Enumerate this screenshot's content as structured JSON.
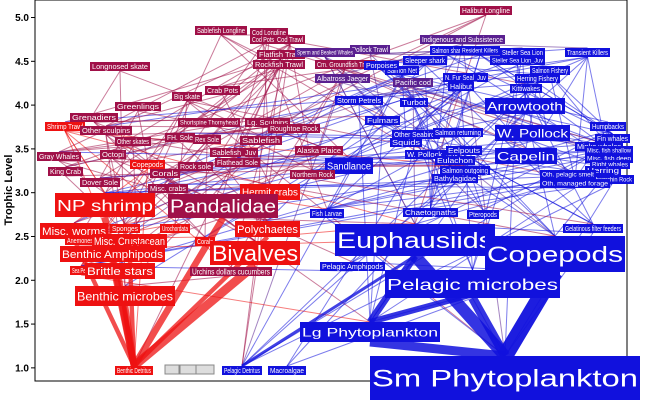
{
  "chart_data": {
    "type": "food-web",
    "ylabel": "Trophic Level",
    "yticks": [
      "1.0",
      "1.5",
      "2.0",
      "2.5",
      "3.0",
      "3.5",
      "4.0",
      "4.5",
      "5.0"
    ],
    "ylim": [
      0.85,
      5.2
    ],
    "colors": {
      "benthic": "#ee1111",
      "pelagic": "#1111dd",
      "mixed": "#a01048",
      "pelagic_mixed": "#5a2090",
      "detritus": "#dddddd",
      "detritus_text": "#444444",
      "axis": "#000000"
    },
    "nodes": [
      {
        "label": "Halibut Longline",
        "tl": 5.22,
        "group": "mixed",
        "size": 1
      },
      {
        "label": "Sablefish Longline",
        "tl": 5.08,
        "group": "mixed",
        "size": 1
      },
      {
        "label": "Cod Longline",
        "tl": 5.06,
        "group": "mixed",
        "size": 1
      },
      {
        "label": "Cod Pots",
        "tl": 5.0,
        "group": "mixed",
        "size": 1
      },
      {
        "label": "Cod Trawl",
        "tl": 5.0,
        "group": "mixed",
        "size": 1
      },
      {
        "label": "Indigenous and Subsistence",
        "tl": 5.0,
        "group": "pelagic_mixed",
        "size": 1
      },
      {
        "label": "Pollock Trawl",
        "tl": 4.93,
        "group": "pelagic_mixed",
        "size": 1
      },
      {
        "label": "Flatfish Trawl",
        "tl": 4.88,
        "group": "mixed",
        "size": 1
      },
      {
        "label": "Sperm and Beaked Whales",
        "tl": 4.86,
        "group": "pelagic_mixed",
        "size": 1
      },
      {
        "label": "Salmon shark",
        "tl": 4.93,
        "group": "pelagic",
        "size": 1
      },
      {
        "label": "Resident Killers",
        "tl": 4.86,
        "group": "pelagic",
        "size": 1
      },
      {
        "label": "Steller Sea Lion",
        "tl": 4.88,
        "group": "pelagic",
        "size": 1
      },
      {
        "label": "Transient Killers",
        "tl": 4.85,
        "group": "pelagic",
        "size": 1
      },
      {
        "label": "Longnosed skate",
        "tl": 4.7,
        "group": "mixed",
        "size": 1
      },
      {
        "label": "Rockfish Trawl",
        "tl": 4.73,
        "group": "mixed",
        "size": 1
      },
      {
        "label": "Cm. Groundfish Trawl",
        "tl": 4.73,
        "group": "mixed",
        "size": 1
      },
      {
        "label": "Sleeper shark",
        "tl": 4.75,
        "group": "pelagic",
        "size": 1
      },
      {
        "label": "Salmon Net",
        "tl": 4.73,
        "group": "pelagic",
        "size": 1
      },
      {
        "label": "Steller Sea Lion_Juv",
        "tl": 4.73,
        "group": "pelagic",
        "size": 1
      },
      {
        "label": "Salmon Fishery",
        "tl": 4.73,
        "group": "pelagic",
        "size": 1
      },
      {
        "label": "Porpoises",
        "tl": 4.72,
        "group": "pelagic",
        "size": 1
      },
      {
        "label": "Albatross Jaeger",
        "tl": 4.55,
        "group": "pelagic_mixed",
        "size": 1
      },
      {
        "label": "Pacific cod",
        "tl": 4.58,
        "group": "pelagic_mixed",
        "size": 1
      },
      {
        "label": "N. Fur Seal_Juv",
        "tl": 4.58,
        "group": "pelagic",
        "size": 1
      },
      {
        "label": "Herring Fishery",
        "tl": 4.53,
        "group": "pelagic",
        "size": 1
      },
      {
        "label": "Halibut",
        "tl": 4.5,
        "group": "pelagic",
        "size": 1
      },
      {
        "label": "Kittiwakes",
        "tl": 4.43,
        "group": "pelagic",
        "size": 1
      },
      {
        "label": "Crab Pots",
        "tl": 4.33,
        "group": "mixed",
        "size": 1
      },
      {
        "label": "Big skate",
        "tl": 4.3,
        "group": "mixed",
        "size": 1
      },
      {
        "label": "Storm Petrels",
        "tl": 4.25,
        "group": "pelagic",
        "size": 1
      },
      {
        "label": "Turbot",
        "tl": 4.3,
        "group": "pelagic",
        "size": 1
      },
      {
        "label": "Greenlings",
        "tl": 4.18,
        "group": "mixed",
        "size": 1
      },
      {
        "label": "Arrowtooth",
        "tl": 4.2,
        "group": "pelagic",
        "size": 2
      },
      {
        "label": "Grenadiers",
        "tl": 4.05,
        "group": "mixed",
        "size": 1
      },
      {
        "label": "Shrimp Trawl",
        "tl": 3.98,
        "group": "benthic",
        "size": 1
      },
      {
        "label": "Other sculpins",
        "tl": 3.93,
        "group": "mixed",
        "size": 1
      },
      {
        "label": "Shortspine Thornyhead",
        "tl": 4.03,
        "group": "mixed",
        "size": 1
      },
      {
        "label": "Lg. Sculpins",
        "tl": 3.98,
        "group": "mixed",
        "size": 1
      },
      {
        "label": "Roughtoe Rock",
        "tl": 3.95,
        "group": "mixed",
        "size": 1
      },
      {
        "label": "Fulmars",
        "tl": 3.93,
        "group": "pelagic",
        "size": 1
      },
      {
        "label": "Humpbacks",
        "tl": 3.98,
        "group": "pelagic",
        "size": 1
      },
      {
        "label": "Sei whales",
        "tl": 3.95,
        "group": "pelagic",
        "size": 1
      },
      {
        "label": "Other Seabirds",
        "tl": 3.85,
        "group": "pelagic",
        "size": 1
      },
      {
        "label": "Salmon returning",
        "tl": 3.83,
        "group": "pelagic",
        "size": 1
      },
      {
        "label": "W. Pollock",
        "tl": 3.85,
        "group": "pelagic",
        "size": 2
      },
      {
        "label": "Fin whales",
        "tl": 3.83,
        "group": "pelagic",
        "size": 1
      },
      {
        "label": "Other skates",
        "tl": 3.78,
        "group": "mixed",
        "size": 1
      },
      {
        "label": "FH. Sole",
        "tl": 3.8,
        "group": "mixed",
        "size": 1
      },
      {
        "label": "Rex Sole",
        "tl": 3.8,
        "group": "mixed",
        "size": 1
      },
      {
        "label": "Sablefish",
        "tl": 3.78,
        "group": "mixed",
        "size": 1
      },
      {
        "label": "Squids",
        "tl": 3.7,
        "group": "pelagic",
        "size": 1
      },
      {
        "label": "W. Pollock_Juv",
        "tl": 3.65,
        "group": "pelagic",
        "size": 1
      },
      {
        "label": "Eelpouts",
        "tl": 3.68,
        "group": "pelagic",
        "size": 1
      },
      {
        "label": "Minke whales",
        "tl": 3.7,
        "group": "pelagic",
        "size": 1
      },
      {
        "label": "Gray Whales",
        "tl": 3.6,
        "group": "mixed",
        "size": 1
      },
      {
        "label": "Octopi",
        "tl": 3.63,
        "group": "mixed",
        "size": 1
      },
      {
        "label": "Sablefish_Juv",
        "tl": 3.65,
        "group": "mixed",
        "size": 1
      },
      {
        "label": "Alaska Plaice",
        "tl": 3.6,
        "group": "mixed",
        "size": 1
      },
      {
        "label": "Capelin",
        "tl": 3.6,
        "group": "pelagic",
        "size": 2
      },
      {
        "label": "Misc. fish shallow",
        "tl": 3.7,
        "group": "pelagic",
        "size": 1
      },
      {
        "label": "Misc. fish deep",
        "tl": 3.63,
        "group": "pelagic",
        "size": 1
      },
      {
        "label": "Right whales",
        "tl": 3.58,
        "group": "pelagic",
        "size": 1
      },
      {
        "label": "Eulachon",
        "tl": 3.55,
        "group": "pelagic",
        "size": 1
      },
      {
        "label": "Herring",
        "tl": 3.48,
        "group": "pelagic",
        "size": 1
      },
      {
        "label": "Sharpchin Rock",
        "tl": 3.45,
        "group": "pelagic",
        "size": 1
      },
      {
        "label": "King Crab",
        "tl": 3.43,
        "group": "mixed",
        "size": 1
      },
      {
        "label": "Copepods",
        "tl": 3.5,
        "group": "benthic",
        "size": 1
      },
      {
        "label": "Rock sole",
        "tl": 3.45,
        "group": "mixed",
        "size": 1
      },
      {
        "label": "Flathead Sole",
        "tl": 3.5,
        "group": "mixed",
        "size": 1
      },
      {
        "label": "Sandlance",
        "tl": 3.55,
        "group": "pelagic",
        "size": 1
      },
      {
        "label": "Salmon outgoing",
        "tl": 3.48,
        "group": "pelagic",
        "size": 1
      },
      {
        "label": "Bathylagidae",
        "tl": 3.42,
        "group": "pelagic",
        "size": 1
      },
      {
        "label": "Oth. pelagic smelt",
        "tl": 3.4,
        "group": "pelagic",
        "size": 1
      },
      {
        "label": "Oth. managed forage",
        "tl": 3.35,
        "group": "pelagic",
        "size": 1
      },
      {
        "label": "Corals",
        "tl": 3.3,
        "group": "mixed",
        "size": 1
      },
      {
        "label": "Dover Sole",
        "tl": 3.3,
        "group": "mixed",
        "size": 1
      },
      {
        "label": "Northern Rock",
        "tl": 3.35,
        "group": "mixed",
        "size": 1
      },
      {
        "label": "Misc. crabs",
        "tl": 3.13,
        "group": "mixed",
        "size": 1
      },
      {
        "label": "Hermit crabs",
        "tl": 3.12,
        "group": "benthic",
        "size": 1
      },
      {
        "label": "NP shrimp",
        "tl": 2.98,
        "group": "benthic",
        "size": 3
      },
      {
        "label": "Pandalidae",
        "tl": 2.95,
        "group": "mixed",
        "size": 3
      },
      {
        "label": "Fish Larvae",
        "tl": 2.95,
        "group": "pelagic",
        "size": 1
      },
      {
        "label": "Chaetognaths",
        "tl": 2.93,
        "group": "pelagic",
        "size": 1
      },
      {
        "label": "Pteropods",
        "tl": 2.92,
        "group": "pelagic",
        "size": 1
      },
      {
        "label": "Misc. worms",
        "tl": 2.75,
        "group": "benthic",
        "size": 2
      },
      {
        "label": "Polychaetes",
        "tl": 2.75,
        "group": "benthic",
        "size": 2
      },
      {
        "label": "Gelatinous filter feeders",
        "tl": 2.78,
        "group": "pelagic",
        "size": 1
      },
      {
        "label": "Sponges",
        "tl": 2.75,
        "group": "benthic",
        "size": 1
      },
      {
        "label": "Urochordata",
        "tl": 2.72,
        "group": "benthic",
        "size": 1
      },
      {
        "label": "Anemones",
        "tl": 2.63,
        "group": "benthic",
        "size": 1
      },
      {
        "label": "Misc. Crustacean",
        "tl": 2.57,
        "group": "benthic",
        "size": 2
      },
      {
        "label": "Shrimp",
        "tl": 2.7,
        "group": "benthic",
        "size": 1
      },
      {
        "label": "Corals",
        "tl": 2.6,
        "group": "benthic",
        "size": 1
      },
      {
        "label": "Euphausiids",
        "tl": 2.6,
        "group": "pelagic",
        "size": 4
      },
      {
        "label": "Benthic Amphipods",
        "tl": 2.42,
        "group": "benthic",
        "size": 3
      },
      {
        "label": "Bivalves",
        "tl": 2.43,
        "group": "benthic",
        "size": 4
      },
      {
        "label": "Copepods",
        "tl": 2.43,
        "group": "pelagic",
        "size": 4
      },
      {
        "label": "Sea Pens",
        "tl": 2.25,
        "group": "benthic",
        "size": 1
      },
      {
        "label": "Brittle stars",
        "tl": 2.2,
        "group": "benthic",
        "size": 2
      },
      {
        "label": "Urchins dollars cucumbers",
        "tl": 2.22,
        "group": "mixed",
        "size": 1
      },
      {
        "label": "Pelagic Amphipods",
        "tl": 2.28,
        "group": "pelagic",
        "size": 1
      },
      {
        "label": "Pelagic microbes",
        "tl": 2.08,
        "group": "pelagic",
        "size": 3
      },
      {
        "label": "Benthic microbes",
        "tl": 1.95,
        "group": "benthic",
        "size": 3
      },
      {
        "label": "Lg Phytoplankton",
        "tl": 1.52,
        "group": "pelagic",
        "size": 3
      },
      {
        "label": "Benthic Detritus",
        "tl": 1.0,
        "group": "benthic",
        "size": 1
      },
      {
        "label": "",
        "tl": 1.0,
        "group": "detritus",
        "size": 1
      },
      {
        "label": "",
        "tl": 1.0,
        "group": "detritus",
        "size": 1
      },
      {
        "label": "",
        "tl": 1.0,
        "group": "detritus",
        "size": 1
      },
      {
        "label": "Pelagic Detritus",
        "tl": 1.0,
        "group": "pelagic",
        "size": 1
      },
      {
        "label": "Macroalgae",
        "tl": 1.0,
        "group": "pelagic",
        "size": 1
      },
      {
        "label": "Sm Phytoplankton",
        "tl": 0.95,
        "group": "pelagic",
        "size": 5
      }
    ]
  }
}
